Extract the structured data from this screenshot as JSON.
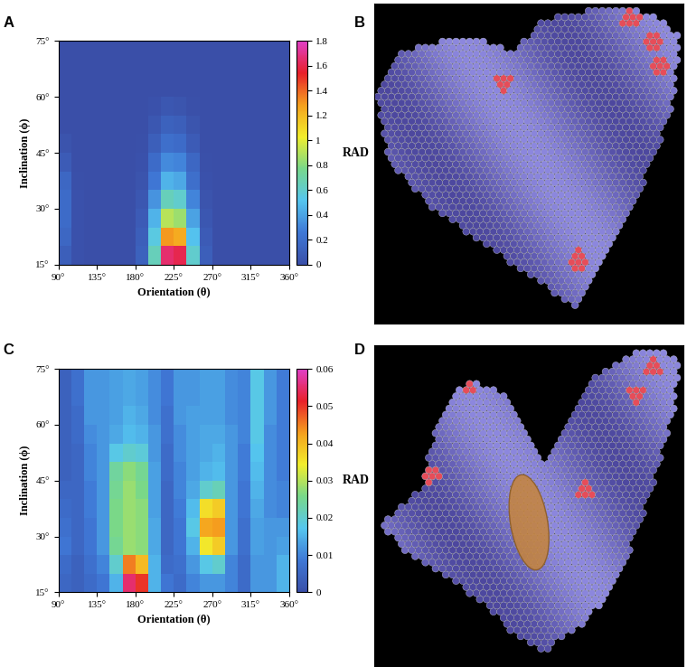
{
  "chart_data": [
    {
      "type": "heatmap",
      "title": "A",
      "x_label": "Orientation (θ)",
      "y_label": "Inclination (ϕ)",
      "x_edges": [
        90,
        105,
        120,
        135,
        150,
        165,
        180,
        195,
        210,
        225,
        240,
        255,
        270,
        285,
        300,
        315,
        330,
        345,
        360
      ],
      "y_edges": [
        15,
        20,
        25,
        30,
        35,
        40,
        45,
        50,
        55,
        60,
        65,
        70,
        75
      ],
      "z": [
        [
          0.1,
          0.02,
          0,
          0,
          0,
          0,
          0.12,
          0.65,
          1.65,
          1.6,
          0.6,
          0.1,
          0,
          0,
          0,
          0,
          0,
          0
        ],
        [
          0.15,
          0.02,
          0,
          0,
          0,
          0,
          0.1,
          0.55,
          1.3,
          1.25,
          0.5,
          0.08,
          0,
          0,
          0,
          0,
          0,
          0
        ],
        [
          0.18,
          0.02,
          0,
          0,
          0,
          0,
          0.08,
          0.45,
          0.9,
          0.85,
          0.4,
          0.05,
          0,
          0,
          0,
          0,
          0,
          0
        ],
        [
          0.18,
          0.02,
          0,
          0,
          0,
          0,
          0.05,
          0.35,
          0.65,
          0.6,
          0.3,
          0.03,
          0,
          0,
          0,
          0,
          0,
          0
        ],
        [
          0.15,
          0.01,
          0,
          0,
          0,
          0,
          0.03,
          0.25,
          0.45,
          0.42,
          0.2,
          0.02,
          0,
          0,
          0,
          0,
          0,
          0
        ],
        [
          0.08,
          0,
          0,
          0,
          0,
          0,
          0.02,
          0.18,
          0.32,
          0.3,
          0.15,
          0.01,
          0,
          0,
          0,
          0,
          0,
          0
        ],
        [
          0.03,
          0,
          0,
          0,
          0,
          0,
          0.01,
          0.1,
          0.2,
          0.18,
          0.08,
          0,
          0,
          0,
          0,
          0,
          0,
          0
        ],
        [
          0,
          0,
          0,
          0,
          0,
          0,
          0,
          0.05,
          0.12,
          0.1,
          0.04,
          0,
          0,
          0,
          0,
          0,
          0,
          0
        ],
        [
          0,
          0,
          0,
          0,
          0,
          0,
          0,
          0.02,
          0.05,
          0.04,
          0.01,
          0,
          0,
          0,
          0,
          0,
          0,
          0
        ],
        [
          0,
          0,
          0,
          0,
          0,
          0,
          0,
          0,
          0,
          0,
          0,
          0,
          0,
          0,
          0,
          0,
          0,
          0
        ],
        [
          0,
          0,
          0,
          0,
          0,
          0,
          0,
          0,
          0,
          0,
          0,
          0,
          0,
          0,
          0,
          0,
          0,
          0
        ],
        [
          0,
          0,
          0,
          0,
          0,
          0,
          0,
          0,
          0,
          0,
          0,
          0,
          0,
          0,
          0,
          0,
          0,
          0
        ]
      ],
      "xlim": [
        90,
        360
      ],
      "ylim": [
        15,
        75
      ],
      "xticks": [
        {
          "value": 90,
          "label": "90°"
        },
        {
          "value": 135,
          "label": "135°"
        },
        {
          "value": 180,
          "label": "180°"
        },
        {
          "value": 225,
          "label": "225°"
        },
        {
          "value": 270,
          "label": "270°"
        },
        {
          "value": 315,
          "label": "315°"
        },
        {
          "value": 360,
          "label": "360°"
        }
      ],
      "yticks": [
        {
          "value": 15,
          "label": "15°"
        },
        {
          "value": 30,
          "label": "30°"
        },
        {
          "value": 45,
          "label": "45°"
        },
        {
          "value": 60,
          "label": "60°"
        },
        {
          "value": 75,
          "label": "75°"
        }
      ],
      "colorbar": {
        "label": "RAD",
        "lim": [
          0,
          1.8
        ],
        "ticks": [
          0,
          0.2,
          0.4,
          0.6,
          0.8,
          1,
          1.2,
          1.4,
          1.6,
          1.8
        ]
      }
    },
    {
      "type": "image",
      "title": "B"
    },
    {
      "type": "heatmap",
      "title": "C",
      "x_label": "Orientation (θ)",
      "y_label": "Inclination (ϕ)",
      "x_edges": [
        90,
        105,
        120,
        135,
        150,
        165,
        180,
        195,
        210,
        225,
        240,
        255,
        270,
        285,
        300,
        315,
        330,
        345,
        360
      ],
      "y_edges": [
        15,
        20,
        25,
        30,
        35,
        40,
        45,
        50,
        55,
        60,
        65,
        70,
        75
      ],
      "z": [
        [
          0.005,
          0.004,
          0.006,
          0.008,
          0.015,
          0.055,
          0.05,
          0.015,
          0.008,
          0.006,
          0.01,
          0.012,
          0.012,
          0.01,
          0.006,
          0.012,
          0.012,
          0.015
        ],
        [
          0.006,
          0.004,
          0.007,
          0.01,
          0.02,
          0.045,
          0.04,
          0.015,
          0.006,
          0.007,
          0.012,
          0.018,
          0.02,
          0.01,
          0.006,
          0.012,
          0.012,
          0.015
        ],
        [
          0.008,
          0.005,
          0.008,
          0.012,
          0.025,
          0.028,
          0.027,
          0.014,
          0.005,
          0.008,
          0.015,
          0.035,
          0.038,
          0.012,
          0.007,
          0.013,
          0.012,
          0.013
        ],
        [
          0.007,
          0.005,
          0.008,
          0.012,
          0.026,
          0.028,
          0.027,
          0.014,
          0.005,
          0.008,
          0.018,
          0.042,
          0.043,
          0.012,
          0.007,
          0.013,
          0.012,
          0.012
        ],
        [
          0.006,
          0.005,
          0.009,
          0.012,
          0.026,
          0.028,
          0.027,
          0.013,
          0.005,
          0.009,
          0.016,
          0.036,
          0.038,
          0.012,
          0.008,
          0.014,
          0.011,
          0.01
        ],
        [
          0.005,
          0.005,
          0.009,
          0.012,
          0.025,
          0.028,
          0.026,
          0.013,
          0.005,
          0.01,
          0.014,
          0.02,
          0.022,
          0.012,
          0.008,
          0.015,
          0.011,
          0.01
        ],
        [
          0.004,
          0.005,
          0.01,
          0.012,
          0.024,
          0.027,
          0.025,
          0.013,
          0.006,
          0.01,
          0.013,
          0.015,
          0.016,
          0.012,
          0.009,
          0.016,
          0.011,
          0.009
        ],
        [
          0.004,
          0.005,
          0.01,
          0.012,
          0.018,
          0.02,
          0.019,
          0.012,
          0.006,
          0.011,
          0.013,
          0.014,
          0.015,
          0.012,
          0.009,
          0.017,
          0.011,
          0.009
        ],
        [
          0.004,
          0.006,
          0.011,
          0.012,
          0.014,
          0.016,
          0.015,
          0.012,
          0.007,
          0.011,
          0.013,
          0.014,
          0.014,
          0.012,
          0.01,
          0.018,
          0.011,
          0.009
        ],
        [
          0.004,
          0.006,
          0.012,
          0.012,
          0.013,
          0.015,
          0.014,
          0.011,
          0.007,
          0.012,
          0.013,
          0.013,
          0.013,
          0.011,
          0.01,
          0.018,
          0.012,
          0.009
        ],
        [
          0.004,
          0.007,
          0.012,
          0.012,
          0.013,
          0.014,
          0.013,
          0.011,
          0.008,
          0.012,
          0.012,
          0.013,
          0.013,
          0.011,
          0.01,
          0.018,
          0.012,
          0.009
        ],
        [
          0.004,
          0.007,
          0.012,
          0.012,
          0.013,
          0.014,
          0.013,
          0.011,
          0.008,
          0.012,
          0.012,
          0.013,
          0.013,
          0.011,
          0.01,
          0.018,
          0.012,
          0.009
        ]
      ],
      "xlim": [
        90,
        360
      ],
      "ylim": [
        15,
        75
      ],
      "xticks": [
        {
          "value": 90,
          "label": "90°"
        },
        {
          "value": 135,
          "label": "135°"
        },
        {
          "value": 180,
          "label": "180°"
        },
        {
          "value": 225,
          "label": "225°"
        },
        {
          "value": 270,
          "label": "270°"
        },
        {
          "value": 315,
          "label": "315°"
        },
        {
          "value": 360,
          "label": "360°"
        }
      ],
      "yticks": [
        {
          "value": 15,
          "label": "15°"
        },
        {
          "value": 30,
          "label": "30°"
        },
        {
          "value": 45,
          "label": "45°"
        },
        {
          "value": 60,
          "label": "60°"
        },
        {
          "value": 75,
          "label": "75°"
        }
      ],
      "colorbar": {
        "label": "RAD",
        "lim": [
          0,
          0.06
        ],
        "ticks": [
          0,
          0.01,
          0.02,
          0.03,
          0.04,
          0.05,
          0.06
        ]
      }
    },
    {
      "type": "image",
      "title": "D"
    }
  ]
}
